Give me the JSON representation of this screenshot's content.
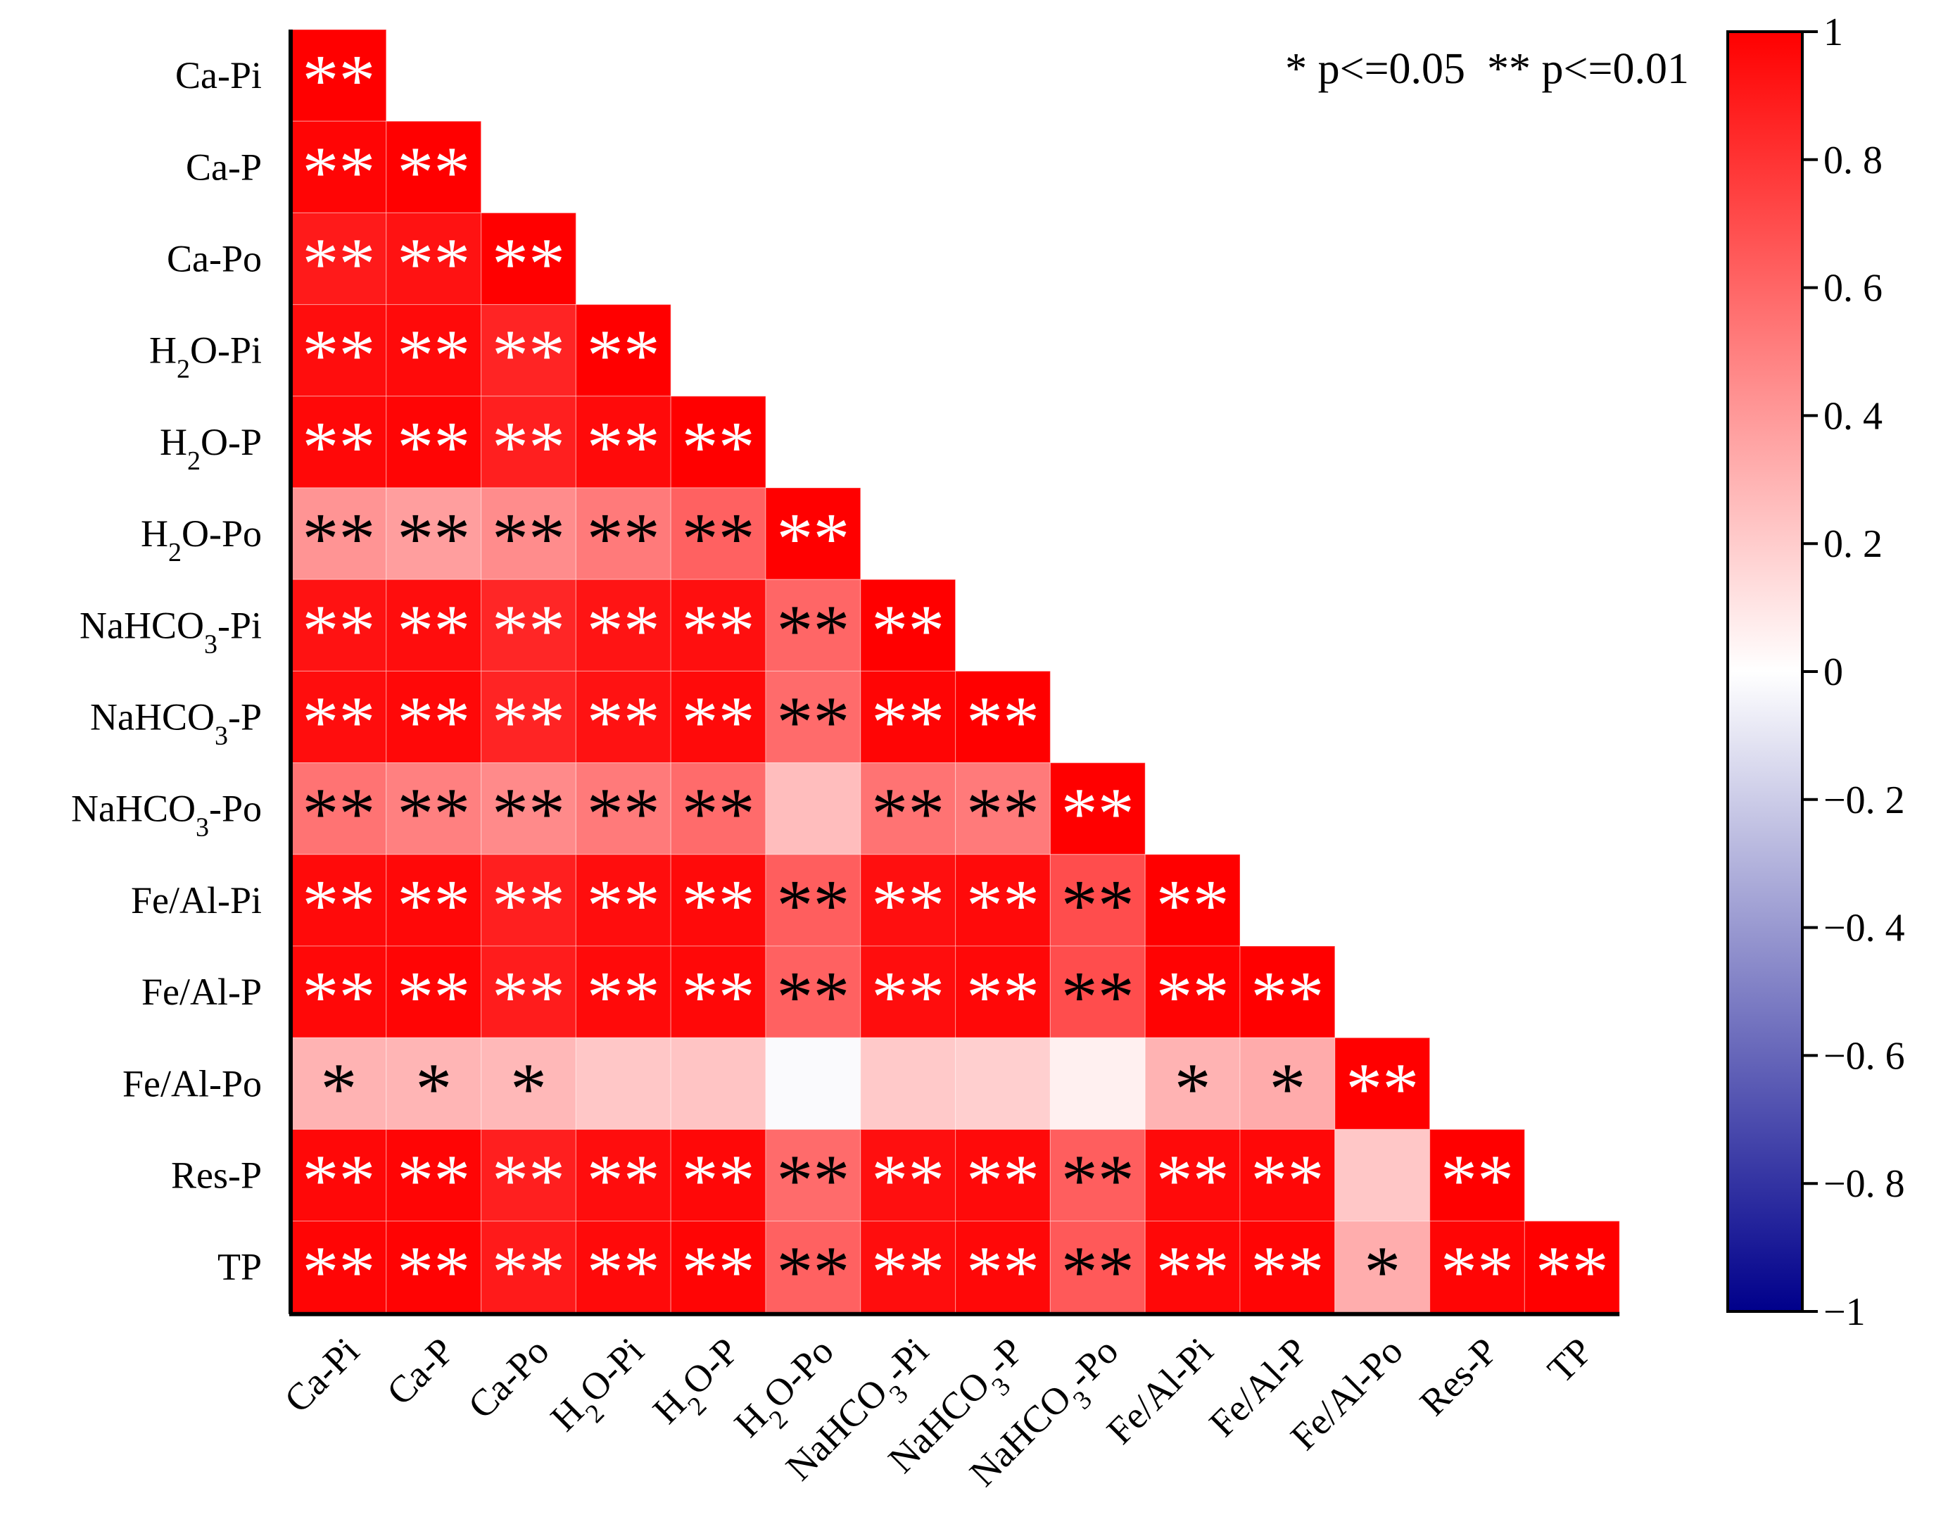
{
  "chart_data": {
    "type": "heatmap",
    "subtype": "lower-triangular correlation matrix",
    "labels": [
      {
        "main": "Ca-Pi"
      },
      {
        "main": "Ca-P"
      },
      {
        "main": "Ca-Po"
      },
      {
        "main": "H",
        "sub": "2",
        "tail": "O-Pi"
      },
      {
        "main": "H",
        "sub": "2",
        "tail": "O-P"
      },
      {
        "main": "H",
        "sub": "2",
        "tail": "O-Po"
      },
      {
        "main": "NaHCO",
        "sub": "3",
        "tail": "-Pi"
      },
      {
        "main": "NaHCO",
        "sub": "3",
        "tail": "-P"
      },
      {
        "main": "NaHCO",
        "sub": "3",
        "tail": "-Po"
      },
      {
        "main": "Fe/Al-Pi"
      },
      {
        "main": "Fe/Al-P"
      },
      {
        "main": "Fe/Al-Po"
      },
      {
        "main": "Res-P"
      },
      {
        "main": "TP"
      }
    ],
    "values": [
      [
        1.0
      ],
      [
        0.98,
        1.0
      ],
      [
        0.9,
        0.93,
        1.0
      ],
      [
        0.95,
        0.96,
        0.86,
        1.0
      ],
      [
        0.97,
        0.98,
        0.88,
        0.96,
        1.0
      ],
      [
        0.42,
        0.38,
        0.45,
        0.52,
        0.62,
        1.0
      ],
      [
        0.93,
        0.95,
        0.85,
        0.92,
        0.94,
        0.6,
        1.0
      ],
      [
        0.95,
        0.97,
        0.86,
        0.93,
        0.96,
        0.58,
        0.98,
        1.0
      ],
      [
        0.55,
        0.5,
        0.46,
        0.52,
        0.58,
        0.26,
        0.55,
        0.52,
        1.0
      ],
      [
        0.96,
        0.97,
        0.88,
        0.95,
        0.96,
        0.63,
        0.94,
        0.96,
        0.7,
        1.0
      ],
      [
        0.97,
        0.98,
        0.89,
        0.96,
        0.97,
        0.62,
        0.95,
        0.97,
        0.7,
        0.99,
        1.0
      ],
      [
        0.3,
        0.29,
        0.28,
        0.22,
        0.23,
        -0.02,
        0.21,
        0.19,
        0.06,
        0.3,
        0.33,
        1.0
      ],
      [
        0.97,
        0.98,
        0.88,
        0.95,
        0.97,
        0.58,
        0.94,
        0.96,
        0.63,
        0.96,
        0.97,
        0.22,
        1.0
      ],
      [
        0.98,
        0.99,
        0.9,
        0.96,
        0.98,
        0.62,
        0.95,
        0.97,
        0.65,
        0.97,
        0.98,
        0.32,
        0.98,
        1.0
      ]
    ],
    "significance": [
      [
        "**"
      ],
      [
        "**",
        "**"
      ],
      [
        "**",
        "**",
        "**"
      ],
      [
        "**",
        "**",
        "**",
        "**"
      ],
      [
        "**",
        "**",
        "**",
        "**",
        "**"
      ],
      [
        "**",
        "**",
        "**",
        "**",
        "**",
        "**"
      ],
      [
        "**",
        "**",
        "**",
        "**",
        "**",
        "**",
        "**"
      ],
      [
        "**",
        "**",
        "**",
        "**",
        "**",
        "**",
        "**",
        "**"
      ],
      [
        "**",
        "**",
        "**",
        "**",
        "**",
        "",
        "**",
        "**",
        "**"
      ],
      [
        "**",
        "**",
        "**",
        "**",
        "**",
        "**",
        "**",
        "**",
        "**",
        "**"
      ],
      [
        "**",
        "**",
        "**",
        "**",
        "**",
        "**",
        "**",
        "**",
        "**",
        "**",
        "**"
      ],
      [
        "*",
        "*",
        "*",
        "",
        "",
        "",
        "",
        "",
        "",
        "*",
        "*",
        "**"
      ],
      [
        "**",
        "**",
        "**",
        "**",
        "**",
        "**",
        "**",
        "**",
        "**",
        "**",
        "**",
        "",
        "**"
      ],
      [
        "**",
        "**",
        "**",
        "**",
        "**",
        "**",
        "**",
        "**",
        "**",
        "**",
        "**",
        "*",
        "**",
        "**"
      ]
    ],
    "significance_legend": "* p<=0.05  ** p<=0.01",
    "colorbar": {
      "min": -1,
      "max": 1,
      "ticks": [
        "1",
        "0. 8",
        "0. 6",
        "0. 4",
        "0. 2",
        "0",
        "−0. 2",
        "−0. 4",
        "−0. 6",
        "−0. 8",
        "−1"
      ],
      "tick_values": [
        1,
        0.8,
        0.6,
        0.4,
        0.2,
        0,
        -0.2,
        -0.4,
        -0.6,
        -0.8,
        -1
      ],
      "colors": {
        "low": "#00008b",
        "mid": "#ffffff",
        "high": "#ff0000"
      }
    }
  }
}
